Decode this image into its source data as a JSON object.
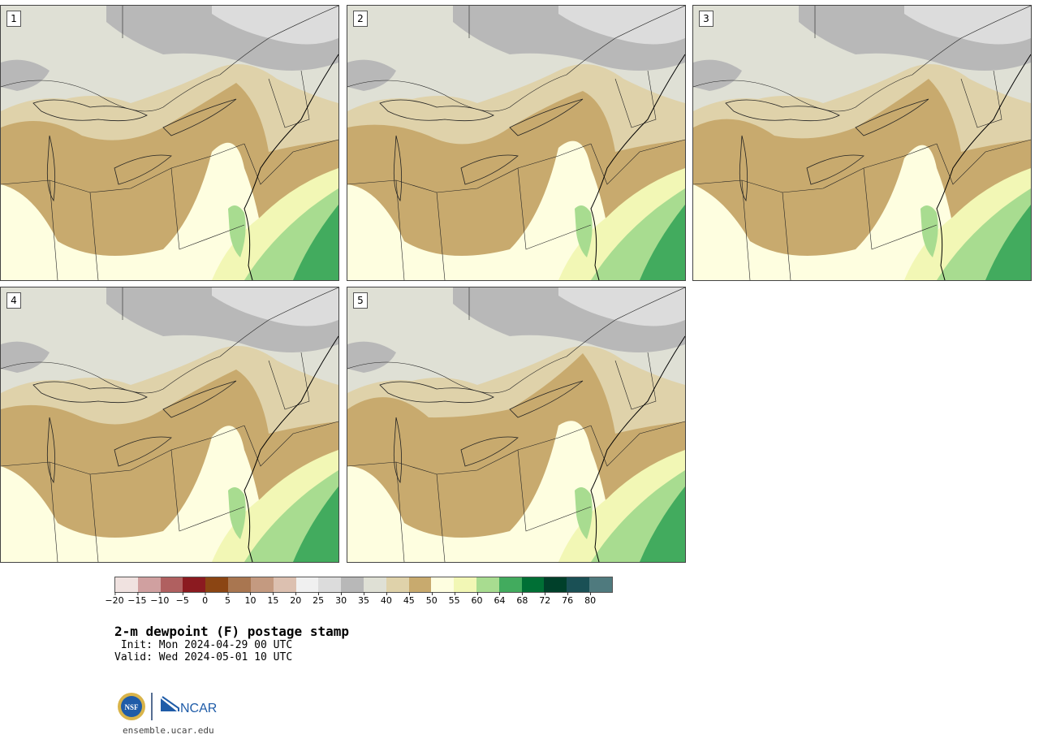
{
  "panels": [
    {
      "num": "1"
    },
    {
      "num": "2"
    },
    {
      "num": "3"
    },
    {
      "num": "4"
    },
    {
      "num": "5"
    }
  ],
  "colorbar": {
    "colors": [
      "#f0e2e0",
      "#d0a0a0",
      "#b06060",
      "#8b1a20",
      "#8b4513",
      "#a97650",
      "#c49a80",
      "#dcc0b0",
      "#f0f0f0",
      "#dcdcdc",
      "#b8b8b8",
      "#dfe0d5",
      "#dfd2aa",
      "#c8aa6e",
      "#fefee0",
      "#f2f7b5",
      "#a8dc90",
      "#42ab5e",
      "#006f35",
      "#00402a",
      "#1a5055",
      "#4f7a7e"
    ],
    "ticks": [
      "−20",
      "−15",
      "−10",
      "−5",
      "0",
      "5",
      "10",
      "15",
      "20",
      "25",
      "30",
      "35",
      "40",
      "45",
      "50",
      "55",
      "60",
      "64",
      "68",
      "72",
      "76",
      "80"
    ]
  },
  "title": "2-m dewpoint (F) postage stamp",
  "init": " Init: Mon 2024-04-29 00 UTC",
  "valid": "Valid: Wed 2024-05-01 10 UTC",
  "logo": {
    "nsf_text": "NSF",
    "ncar_text": "NCAR"
  },
  "site": "ensemble.ucar.edu"
}
